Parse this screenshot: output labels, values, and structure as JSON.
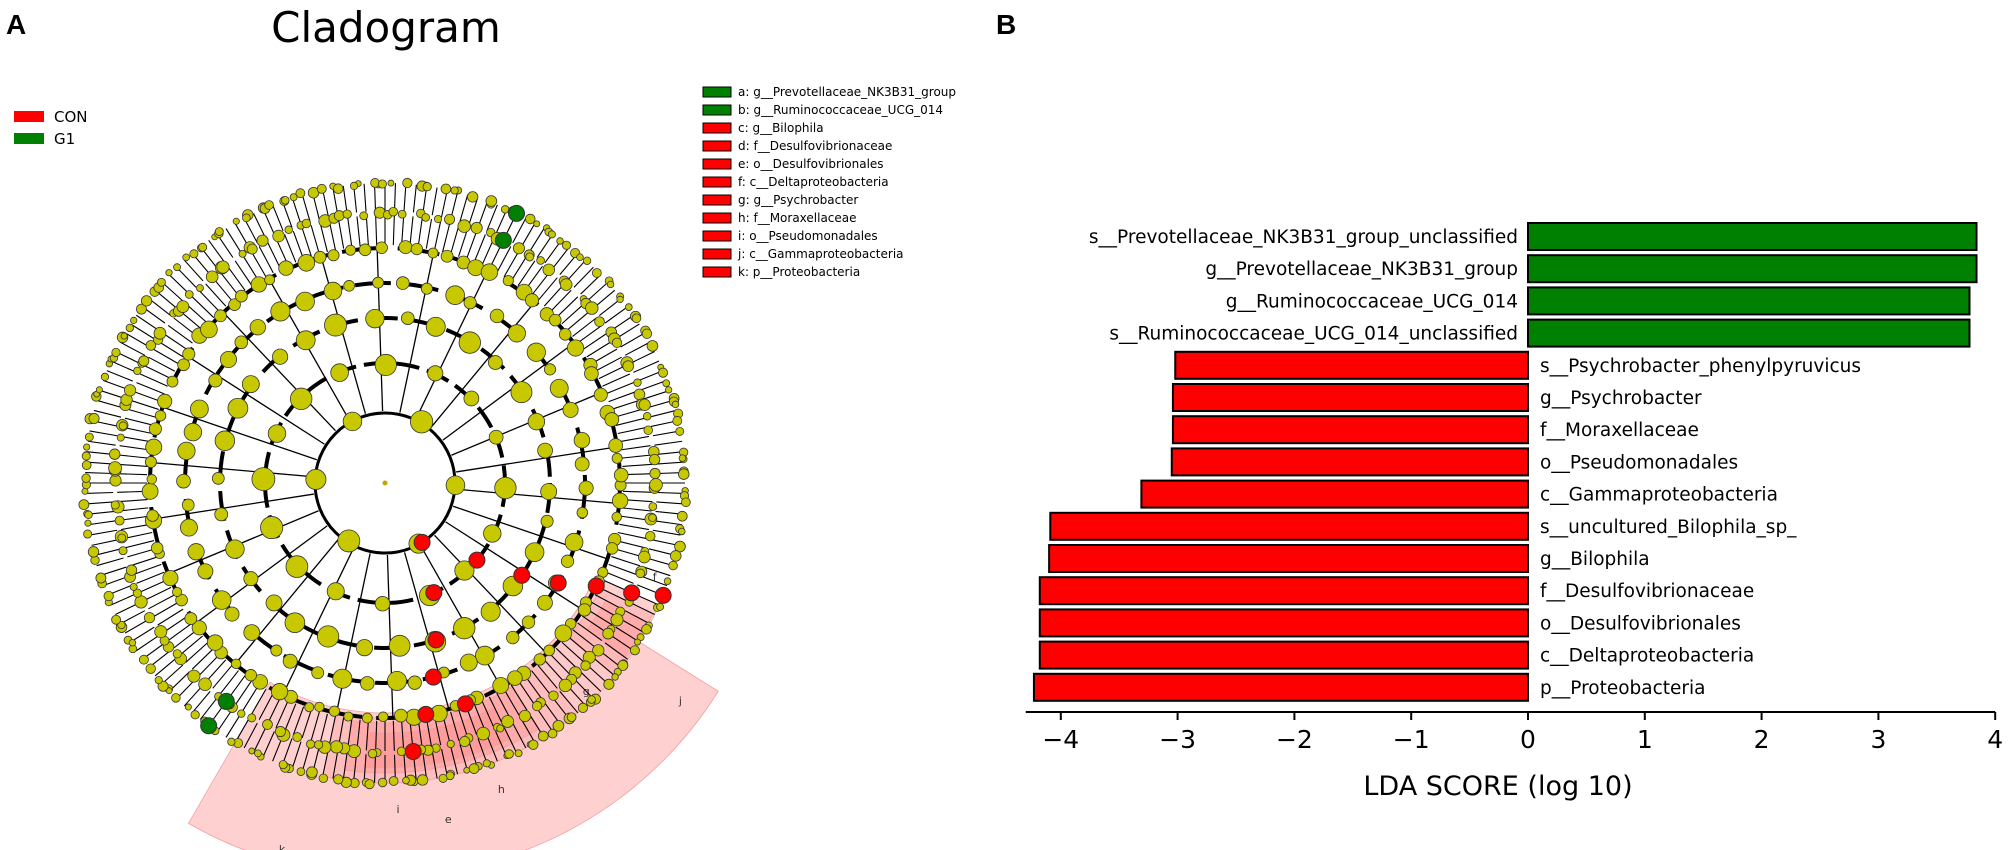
{
  "panel_a": {
    "label": "A",
    "title": "Cladogram",
    "group_legend": [
      {
        "name": "CON",
        "color": "#ff0000"
      },
      {
        "name": "G1",
        "color": "#008000"
      }
    ],
    "taxa_legend": [
      {
        "key": "a",
        "text": "a: g__Prevotellaceae_NK3B31_group",
        "group": "G1"
      },
      {
        "key": "b",
        "text": "b: g__Ruminococcaceae_UCG_014",
        "group": "G1"
      },
      {
        "key": "c",
        "text": "c: g__Bilophila",
        "group": "CON"
      },
      {
        "key": "d",
        "text": "d: f__Desulfovibrionaceae",
        "group": "CON"
      },
      {
        "key": "e",
        "text": "e: o__Desulfovibrionales",
        "group": "CON"
      },
      {
        "key": "f",
        "text": "f: c__Deltaproteobacteria",
        "group": "CON"
      },
      {
        "key": "g",
        "text": "g: g__Psychrobacter",
        "group": "CON"
      },
      {
        "key": "h",
        "text": "h: f__Moraxellaceae",
        "group": "CON"
      },
      {
        "key": "i",
        "text": "i: o__Pseudomonadales",
        "group": "CON"
      },
      {
        "key": "j",
        "text": "j: c__Gammaproteobacteria",
        "group": "CON"
      },
      {
        "key": "k",
        "text": "k: p__Proteobacteria",
        "group": "CON"
      }
    ],
    "colors": {
      "node": "#c8c800",
      "con": "#ff0000",
      "g1": "#008000",
      "shade": "#ffc8c8"
    }
  },
  "panel_b": {
    "label": "B"
  },
  "chart_data": {
    "type": "bar",
    "orientation": "horizontal",
    "xlabel": "LDA SCORE (log 10)",
    "xlim": [
      -4.3,
      4.0
    ],
    "xticks": [
      -4,
      -3,
      -2,
      -1,
      0,
      1,
      2,
      3,
      4
    ],
    "xtick_labels": [
      "−4",
      "−3",
      "−2",
      "−1",
      "0",
      "1",
      "2",
      "3",
      "4"
    ],
    "categories": [
      "s__Prevotellaceae_NK3B31_group_unclassified",
      "g__Prevotellaceae_NK3B31_group",
      "g__Ruminococcaceae_UCG_014",
      "s__Ruminococcaceae_UCG_014_unclassified",
      "s__Psychrobacter_phenylpyruvicus",
      "g__Psychrobacter",
      "f__Moraxellaceae",
      "o__Pseudomonadales",
      "c__Gammaproteobacteria",
      "s__uncultured_Bilophila_sp_",
      "g__Bilophila",
      "f__Desulfovibrionaceae",
      "o__Desulfovibrionales",
      "c__Deltaproteobacteria",
      "p__Proteobacteria"
    ],
    "values": [
      3.84,
      3.84,
      3.78,
      3.78,
      -3.02,
      -3.04,
      -3.04,
      -3.05,
      -3.31,
      -4.09,
      -4.1,
      -4.18,
      -4.18,
      -4.18,
      -4.23
    ],
    "groups": [
      "G1",
      "G1",
      "G1",
      "G1",
      "CON",
      "CON",
      "CON",
      "CON",
      "CON",
      "CON",
      "CON",
      "CON",
      "CON",
      "CON",
      "CON"
    ],
    "group_colors": {
      "CON": "#ff0000",
      "G1": "#008000"
    }
  }
}
